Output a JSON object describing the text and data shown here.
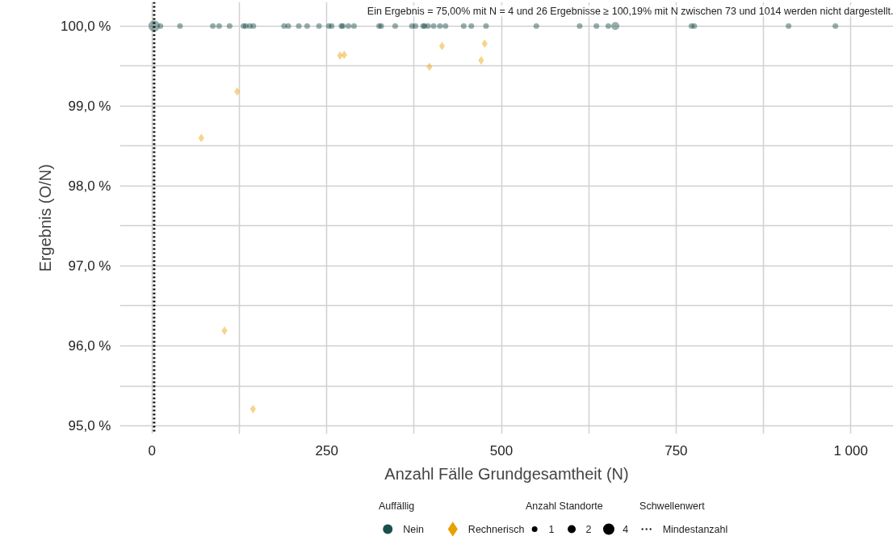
{
  "chart_data": {
    "type": "bubble",
    "xlabel": "Anzahl Fälle Grundgesamtheit (N)",
    "ylabel": "Ergebnis (O/N)",
    "xlim": [
      -46,
      1061
    ],
    "ylim": [
      94.9,
      100.3
    ],
    "xticks": [
      0,
      {
        "value": 125,
        "label": null
      },
      250,
      {
        "value": 375,
        "label": null
      },
      500,
      {
        "value": 625,
        "label": null
      },
      750,
      {
        "value": 875,
        "label": null
      },
      {
        "value": 1000,
        "label": "1 000"
      }
    ],
    "yticks": [
      {
        "value": 95,
        "label": "95,0 %"
      },
      {
        "value": 95.5,
        "label": null
      },
      {
        "value": 96,
        "label": "96,0 %"
      },
      {
        "value": 96.5,
        "label": null
      },
      {
        "value": 97,
        "label": "97,0 %"
      },
      {
        "value": 97.5,
        "label": null
      },
      {
        "value": 98,
        "label": "98,0 %"
      },
      {
        "value": 98.5,
        "label": null
      },
      {
        "value": 99,
        "label": "99,0 %"
      },
      {
        "value": 99.5,
        "label": null
      },
      {
        "value": 100,
        "label": "100,0 %"
      }
    ],
    "grid": true,
    "legend": "bottom",
    "legend_title": "Auffällig",
    "size_legend": [
      1,
      2,
      4
    ],
    "ref_lines": [
      {
        "axis": "x",
        "value": 3,
        "label": "Mindestanzahl",
        "line_style": "dotted",
        "color": "#000000"
      }
    ],
    "annotations": [
      "Ein Ergebnis = 75,00% mit N = 4 und 26 Ergebnisse ≥ 100,19% mit N zwischen 73 und 1014 werden nicht dargestellt.",
      "Anzahl Standorte",
      "Schwellenwert"
    ],
    "series": [
      {
        "name": "Nein",
        "color": "#1b4f4b",
        "marker": "circle",
        "x": [
          3,
          12,
          40,
          87,
          96,
          111,
          131,
          134,
          140,
          145,
          189,
          195,
          210,
          222,
          239,
          253,
          257,
          271,
          273,
          281,
          289,
          325,
          328,
          348,
          372,
          377,
          388,
          390,
          395,
          403,
          412,
          420,
          446,
          457,
          478,
          550,
          612,
          636,
          653,
          663,
          772,
          776,
          911,
          978
        ],
        "values": [
          100,
          100,
          100,
          100,
          100,
          100,
          100,
          100,
          100,
          100,
          100,
          100,
          100,
          100,
          100,
          100,
          100,
          100,
          100,
          100,
          100,
          100,
          100,
          100,
          100,
          100,
          100,
          100,
          100,
          100,
          100,
          100,
          100,
          100,
          100,
          100,
          100,
          100,
          100,
          100,
          100,
          100,
          100,
          100
        ],
        "sizes": [
          4,
          1,
          1,
          1,
          1,
          1,
          1,
          1,
          1,
          1,
          1,
          1,
          1,
          1,
          1,
          1,
          1,
          1,
          1,
          1,
          1,
          1,
          1,
          1,
          1,
          1,
          1,
          1,
          1,
          1,
          1,
          1,
          1,
          1,
          1,
          1,
          1,
          1,
          1,
          2,
          1,
          1,
          1,
          1
        ]
      },
      {
        "name": "Rechnerisch",
        "color": "#e8a000",
        "marker": "diamond",
        "x": [
          70.5,
          103.7,
          121.8,
          144.5,
          269,
          275,
          397,
          415,
          471,
          476
        ],
        "values": [
          98.6,
          96.19,
          99.18,
          95.21,
          99.63,
          99.64,
          99.49,
          99.75,
          99.57,
          99.78
        ],
        "sizes": [
          1,
          1,
          1,
          1,
          1,
          1,
          1,
          1,
          1,
          1
        ]
      }
    ]
  }
}
